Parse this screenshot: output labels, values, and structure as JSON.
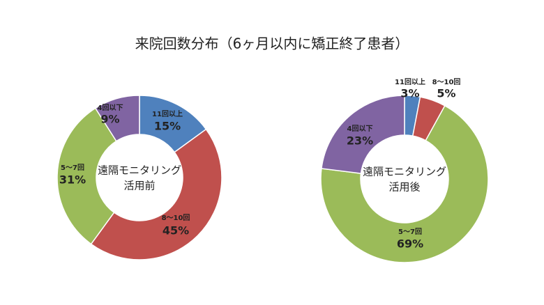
{
  "title": "来院回数分布（6ヶ月以内に矯正終了患者）",
  "chart_data": [
    {
      "type": "donut",
      "center_label": [
        "遠隔モニタリング",
        "活用前"
      ],
      "categories": [
        "11回以上",
        "8〜10回",
        "5〜7回",
        "4回以下"
      ],
      "values": [
        15,
        45,
        31,
        9
      ],
      "value_labels": [
        "15%",
        "45%",
        "31%",
        "9%"
      ],
      "colors": [
        "#4f81bd",
        "#c0504d",
        "#9bbb59",
        "#8064a2"
      ]
    },
    {
      "type": "donut",
      "center_label": [
        "遠隔モニタリング",
        "活用後"
      ],
      "categories": [
        "11回以上",
        "8〜10回",
        "5〜7回",
        "4回以下"
      ],
      "values": [
        3,
        5,
        69,
        23
      ],
      "value_labels": [
        "3%",
        "5%",
        "69%",
        "23%"
      ],
      "colors": [
        "#4f81bd",
        "#c0504d",
        "#9bbb59",
        "#8064a2"
      ]
    }
  ]
}
